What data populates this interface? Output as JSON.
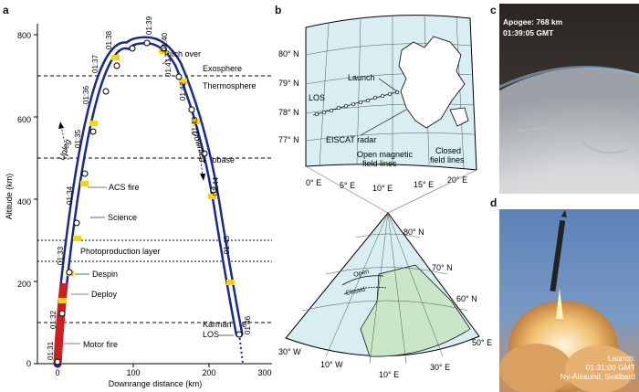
{
  "panels": {
    "a": "a",
    "b": "b",
    "c": "c",
    "d": "d"
  },
  "trajectory": {
    "ylabel": "Altitude (km)",
    "xlabel": "Downrange distance (km)",
    "y_ticks": [
      "0",
      "200",
      "400",
      "600",
      "800"
    ],
    "x_ticks": [
      "0",
      "100",
      "200",
      "300"
    ],
    "layers": {
      "exosphere": "Exosphere",
      "thermosphere": "Thermosphere",
      "exobase": "Exobase",
      "photoproduction": "Photoproduction layer",
      "karman": "Kármán line"
    },
    "events": {
      "pitch_over": "Pitch over",
      "acs_fire": "ACS fire",
      "science": "Science",
      "despin": "Despin",
      "deploy": "Deploy",
      "motor_fire": "Motor fire",
      "los": "LOS"
    },
    "upleg": "Upleg",
    "downleg": "Downleg",
    "times": [
      "01:31",
      "01:32",
      "01:33",
      "01:34",
      "01:35",
      "01:36",
      "01:37",
      "01:38",
      "01:39",
      "01:40",
      "01:41",
      "01:42",
      "01:43",
      "01:44",
      "01:45",
      "01:46"
    ]
  },
  "map": {
    "lat_labels": [
      "80° N",
      "79° N",
      "78° N",
      "77° N"
    ],
    "lon_labels": [
      "0° E",
      "5° E",
      "10° E",
      "15° E",
      "20° E"
    ],
    "launch": "Launch",
    "los": "LOS",
    "eiscat": "EISCAT radar",
    "open_lines": [
      "Open magnetic",
      "field lines"
    ],
    "closed_lines": [
      "Closed",
      "field lines"
    ],
    "lower_lat": [
      "80° N",
      "70° N",
      "60° N",
      "50° E"
    ],
    "lower_lon": [
      "30° W",
      "10° W",
      "10° E",
      "30° E"
    ],
    "open": "Open",
    "closed": "Closed"
  },
  "photo_c": {
    "line1": "Apogee: 768 km",
    "line2": "01:39:05 GMT"
  },
  "photo_d": {
    "line1": "Launch:",
    "line2": "01:31:00 GMT",
    "line3": "Ny-Ålesund, Svalbard"
  },
  "colors": {
    "trajectory_blue": "#1a2a8c",
    "motor_red": "#cc1f1f",
    "marker_yellow": "#f2d21c",
    "map_water": "#d8eef2",
    "map_land": "#ffffff"
  }
}
